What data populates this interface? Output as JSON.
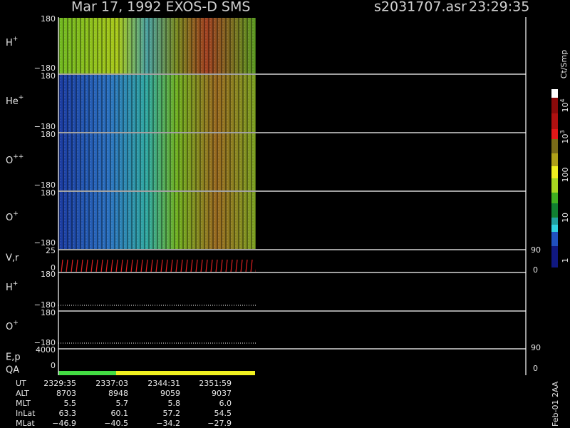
{
  "header": {
    "title": "Mar 17, 1992   EXOS-D SMS",
    "file": "s2031707.asr",
    "time": "23:29:35"
  },
  "panels": [
    {
      "label": "H",
      "sup": "+",
      "top": "180",
      "bottom": "−180"
    },
    {
      "label": "He",
      "sup": "+",
      "top": "180",
      "bottom": "−180"
    },
    {
      "label": "O",
      "sup": "++",
      "top": "180",
      "bottom": "−180"
    },
    {
      "label": "O",
      "sup": "+",
      "top": "180",
      "bottom": "−180"
    },
    {
      "label": "V,r",
      "top": "25",
      "bottom": "0",
      "right_top": "90",
      "right_bottom": "0"
    },
    {
      "label": "H",
      "sup": "+",
      "top": "180",
      "bottom": "−180"
    },
    {
      "label": "O",
      "sup": "+",
      "top": "180",
      "bottom": "−180"
    },
    {
      "label": "E,p",
      "label2": "QA",
      "top": "4000",
      "bottom": "0",
      "right_top": "90",
      "right_bottom": "0"
    }
  ],
  "colorbar": {
    "unit": "Ct/Smp",
    "labels": [
      {
        "base": "10",
        "exp": "4"
      },
      {
        "base": "10",
        "exp": "3"
      },
      {
        "base": "100"
      },
      {
        "base": "10"
      },
      {
        "base": "1"
      }
    ]
  },
  "table": {
    "rows": [
      {
        "label": "UT",
        "values": [
          "2329:35",
          "2337:03",
          "2344:31",
          "2351:59"
        ]
      },
      {
        "label": "ALT",
        "values": [
          "8703",
          "8948",
          "9059",
          "9037"
        ]
      },
      {
        "label": "MLT",
        "values": [
          "5.5",
          "5.7",
          "5.8",
          "6.0"
        ]
      },
      {
        "label": "InLat",
        "values": [
          "63.3",
          "60.1",
          "57.2",
          "54.5"
        ]
      },
      {
        "label": "MLat",
        "values": [
          "−46.9",
          "−40.5",
          "−34.2",
          "−27.9"
        ]
      }
    ]
  },
  "footer": "Feb-01 2AA"
}
